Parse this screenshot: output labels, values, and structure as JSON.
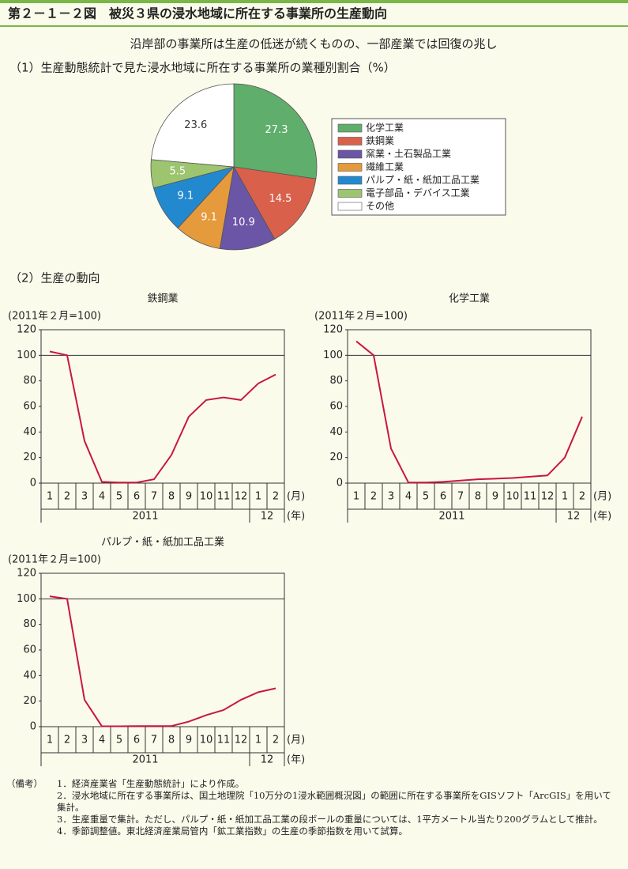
{
  "header": {
    "title": "第２－１－２図　被災３県の浸水地域に所在する事業所の生産動向",
    "subtitle": "沿岸部の事業所は生産の低迷が続くものの、一部産業では回復の兆し",
    "section_title": "（2）生産の動向"
  },
  "chart_data": [
    {
      "type": "pie",
      "title": "（1）生産動態統計で見た浸水地域に所在する事業所の業種別割合（%）",
      "categories": [
        "化学工業",
        "鉄鋼業",
        "窯業・土石製品工業",
        "繊維工業",
        "パルプ・紙・紙加工品工業",
        "電子部品・デバイス工業",
        "その他"
      ],
      "values": [
        27.3,
        14.5,
        10.9,
        9.1,
        9.1,
        5.5,
        23.6
      ],
      "colors": [
        "#5fae6b",
        "#d9604a",
        "#6a55a6",
        "#e59a3c",
        "#2389cf",
        "#9dc46f",
        "#ffffff"
      ],
      "legend": "right"
    },
    {
      "type": "line",
      "title": "鉄鋼業",
      "y_label": "(2011年２月=100)",
      "categories": [
        "1",
        "2",
        "3",
        "4",
        "5",
        "6",
        "7",
        "8",
        "9",
        "10",
        "11",
        "12",
        "1",
        "2"
      ],
      "years": [
        "2011",
        "12"
      ],
      "x_unit": "(月)",
      "year_unit": "(年)",
      "values": [
        103,
        100,
        33,
        1,
        0.5,
        0.5,
        3,
        22,
        52,
        65,
        67,
        65,
        78,
        85
      ],
      "color": "#c8173f",
      "ylim": [
        0,
        120
      ],
      "yticks": [
        0,
        20,
        40,
        60,
        80,
        100,
        120
      ],
      "hline": 100
    },
    {
      "type": "line",
      "title": "化学工業",
      "y_label": "(2011年２月=100)",
      "categories": [
        "1",
        "2",
        "3",
        "4",
        "5",
        "6",
        "7",
        "8",
        "9",
        "10",
        "11",
        "12",
        "1",
        "2"
      ],
      "years": [
        "2011",
        "12"
      ],
      "x_unit": "(月)",
      "year_unit": "(年)",
      "values": [
        111,
        100,
        27,
        0.5,
        0.5,
        1,
        2,
        3,
        3.5,
        4,
        5,
        6,
        20,
        52
      ],
      "color": "#c8173f",
      "ylim": [
        0,
        120
      ],
      "yticks": [
        0,
        20,
        40,
        60,
        80,
        100,
        120
      ],
      "hline": 100
    },
    {
      "type": "line",
      "title": "パルプ・紙・紙加工品工業",
      "y_label": "(2011年２月=100)",
      "categories": [
        "1",
        "2",
        "3",
        "4",
        "5",
        "6",
        "7",
        "8",
        "9",
        "10",
        "11",
        "12",
        "1",
        "2"
      ],
      "years": [
        "2011",
        "12"
      ],
      "x_unit": "(月)",
      "year_unit": "(年)",
      "values": [
        102,
        100,
        21,
        0.3,
        0.3,
        0.5,
        0.5,
        0.5,
        4,
        9,
        13,
        21,
        27,
        30
      ],
      "color": "#c8173f",
      "ylim": [
        0,
        120
      ],
      "yticks": [
        0,
        20,
        40,
        60,
        80,
        100,
        120
      ],
      "hline": 100
    }
  ],
  "notes": {
    "label": "（備考）",
    "items": [
      "1．経済産業省「生産動態統計」により作成。",
      "2．浸水地域に所在する事業所は、国土地理院「10万分の1浸水範囲概況図」の範囲に所在する事業所をGISソフト「ArcGIS」を用いて集計。",
      "3．生産重量で集計。ただし、パルプ・紙・紙加工品工業の段ボールの重量については、1平方メートル当たり200グラムとして推計。",
      "4．季節調整値。東北経済産業局管内「鉱工業指数」の生産の季節指数を用いて試算。"
    ]
  }
}
